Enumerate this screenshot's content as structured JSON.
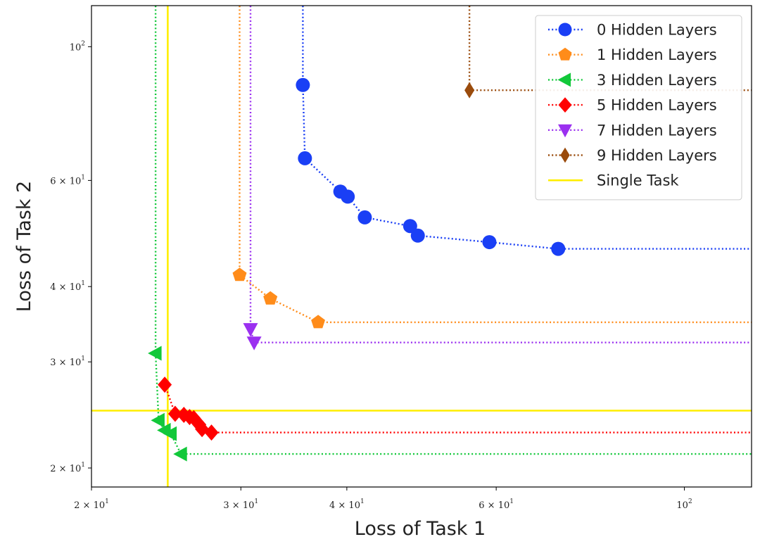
{
  "chart_data": {
    "type": "scatter",
    "title": "",
    "xlabel": "Loss of Task 1",
    "ylabel": "Loss of Task 2",
    "xscale": "log",
    "yscale": "log",
    "xlim": [
      20,
      120
    ],
    "ylim": [
      18.6,
      117
    ],
    "grid": false,
    "legend_position": "top-right",
    "x_ticks": [
      {
        "value": 20,
        "base": "2 × 10",
        "exp": "1"
      },
      {
        "value": 30,
        "base": "3 × 10",
        "exp": "1"
      },
      {
        "value": 40,
        "base": "4 × 10",
        "exp": "1"
      },
      {
        "value": 60,
        "base": "6 × 10",
        "exp": "1"
      },
      {
        "value": 100,
        "base": "10",
        "exp": "2"
      }
    ],
    "y_ticks": [
      {
        "value": 20,
        "base": "2 × 10",
        "exp": "1"
      },
      {
        "value": 30,
        "base": "3 × 10",
        "exp": "1"
      },
      {
        "value": 40,
        "base": "4 × 10",
        "exp": "1"
      },
      {
        "value": 60,
        "base": "6 × 10",
        "exp": "1"
      },
      {
        "value": 100,
        "base": "10",
        "exp": "2"
      }
    ],
    "series": [
      {
        "name": "0 Hidden Layers",
        "color": "#1a3ff5",
        "marker": "circle",
        "x": [
          35.5,
          35.7,
          39.3,
          40.1,
          42.0,
          47.5,
          48.5,
          58.9,
          71.0
        ],
        "y": [
          86.4,
          65.3,
          57.5,
          56.4,
          52.1,
          50.4,
          48.6,
          47.4,
          46.2
        ],
        "ext_up": true,
        "ext_right": true
      },
      {
        "name": "1 Hidden Layers",
        "color": "#ff8c1a",
        "marker": "pentagon",
        "x": [
          29.9,
          32.5,
          37.0
        ],
        "y": [
          41.8,
          38.2,
          34.9
        ],
        "ext_up": true,
        "ext_right": true
      },
      {
        "name": "3 Hidden Layers",
        "color": "#12c83a",
        "marker": "triangle-left",
        "x": [
          23.8,
          24.0,
          24.4,
          24.8,
          25.5
        ],
        "y": [
          31.0,
          24.0,
          23.1,
          22.8,
          21.1
        ],
        "ext_up": true,
        "ext_right": true
      },
      {
        "name": "5 Hidden Layers",
        "color": "#ff0000",
        "marker": "diamond",
        "x": [
          24.4,
          25.1,
          25.7,
          26.1,
          26.4,
          26.8,
          27.0,
          27.7
        ],
        "y": [
          27.5,
          24.6,
          24.5,
          24.3,
          24.2,
          23.6,
          23.2,
          22.9
        ],
        "ext_up": false,
        "ext_right": true
      },
      {
        "name": "7 Hidden Layers",
        "color": "#9b30f0",
        "marker": "triangle-down",
        "x": [
          30.8,
          31.1
        ],
        "y": [
          34.0,
          32.3
        ],
        "ext_up": true,
        "ext_right": true
      },
      {
        "name": "9 Hidden Layers",
        "color": "#9a4b0c",
        "marker": "diamond-thin",
        "x": [
          55.8
        ],
        "y": [
          84.7
        ],
        "ext_up": true,
        "ext_right": true
      }
    ],
    "reference_lines": [
      {
        "name": "Single Task",
        "color": "#ffee00",
        "x": 24.6,
        "y": 24.9
      }
    ]
  }
}
